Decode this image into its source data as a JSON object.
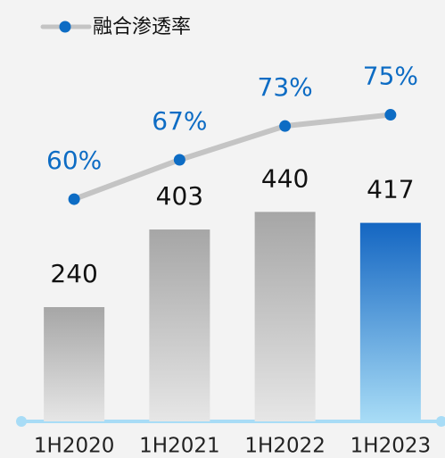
{
  "chart_data": {
    "type": "bar",
    "categories": [
      "1H2020",
      "1H2021",
      "1H2022",
      "1H2023"
    ],
    "ylim": [
      0,
      885
    ],
    "y2lim": [
      20.5,
      95.4
    ],
    "legend": "top-left",
    "series": [
      {
        "type": "bar",
        "colors": [
          "#a6a6a6",
          "#a6a6a6",
          "#a6a6a6",
          "#1466c2"
        ],
        "fade_colors": [
          "#e6e6e6",
          "#e6e6e6",
          "#e6e6e6",
          "#a8dcf6"
        ],
        "values": [
          240,
          403,
          440,
          417
        ]
      },
      {
        "type": "line",
        "name": "融合渗透率",
        "axis": "y2",
        "color": "#c4c4c4",
        "marker_color": "#0d6cc4",
        "values": [
          60,
          67,
          73,
          75
        ],
        "value_labels": [
          "60%",
          "67%",
          "73%",
          "75%"
        ]
      }
    ]
  }
}
